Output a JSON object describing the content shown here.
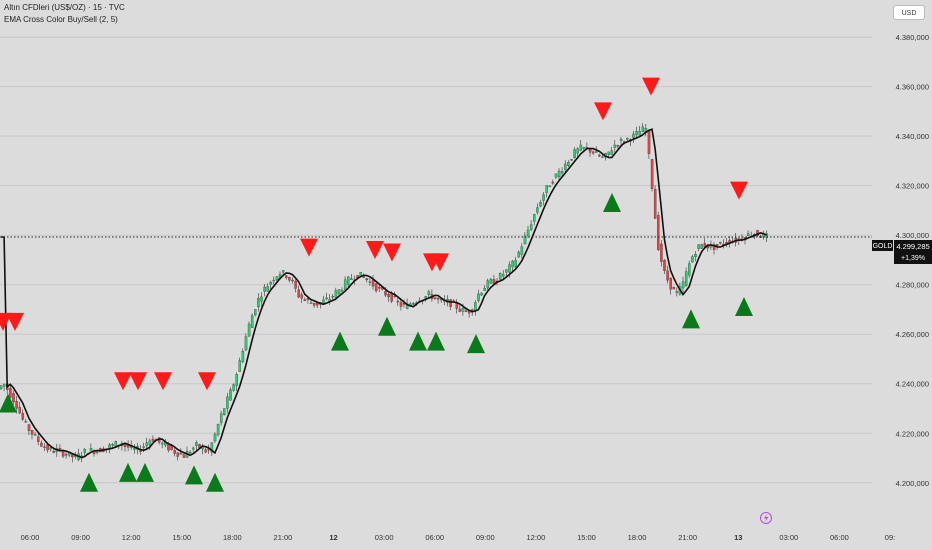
{
  "header": {
    "symbol_line": "Altın CFDleri (US$/OZ) · 15 · TVC",
    "indicator_line": "EMA Cross Color Buy/Sell (2, 5)"
  },
  "scale_button": {
    "label": "USD"
  },
  "price_badge": {
    "symbol": "GOLD",
    "price": "4.299,285",
    "change": "+1,39%"
  },
  "colors": {
    "background": "#dcdcdc",
    "bull": "#2ecc71",
    "bear": "#e04545",
    "buy": "#0a7a1a",
    "sell": "#ff1a1a",
    "ema": "#111111",
    "cross_up": "#2222cc",
    "cross_down": "#bb33cc"
  },
  "chart_data": {
    "type": "candlestick",
    "ylabel": "",
    "ylim": [
      4189000,
      4395000
    ],
    "y_ticks": [
      {
        "value": 4200000,
        "label": "4.200,000"
      },
      {
        "value": 4220000,
        "label": "4.220,000"
      },
      {
        "value": 4240000,
        "label": "4.240,000"
      },
      {
        "value": 4260000,
        "label": "4.260,000"
      },
      {
        "value": 4280000,
        "label": "4.280,000"
      },
      {
        "value": 4300000,
        "label": "4.300,000"
      },
      {
        "value": 4320000,
        "label": "4.320,000"
      },
      {
        "value": 4340000,
        "label": "4.340,000"
      },
      {
        "value": 4360000,
        "label": "4.360,000"
      },
      {
        "value": 4380000,
        "label": "4.380,000"
      }
    ],
    "x_labels": [
      "06:00",
      "09:00",
      "12:00",
      "15:00",
      "18:00",
      "21:00",
      "12",
      "03:00",
      "06:00",
      "09:00",
      "12:00",
      "15:00",
      "18:00",
      "21:00",
      "13",
      "03:00",
      "06:00",
      "09:"
    ],
    "bold_x_labels": [
      "12",
      "13"
    ],
    "last_price": 4299285,
    "price_path": [
      [
        0,
        4238000
      ],
      [
        6,
        4240000
      ],
      [
        12,
        4236000
      ],
      [
        18,
        4232000
      ],
      [
        24,
        4226000
      ],
      [
        30,
        4222000
      ],
      [
        36,
        4219000
      ],
      [
        42,
        4216000
      ],
      [
        48,
        4214000
      ],
      [
        54,
        4213000
      ],
      [
        60,
        4213000
      ],
      [
        66,
        4212000
      ],
      [
        72,
        4211000
      ],
      [
        78,
        4210000
      ],
      [
        84,
        4212000
      ],
      [
        90,
        4213000
      ],
      [
        96,
        4213000
      ],
      [
        102,
        4213500
      ],
      [
        108,
        4214000
      ],
      [
        114,
        4215000
      ],
      [
        120,
        4216000
      ],
      [
        126,
        4215000
      ],
      [
        132,
        4214000
      ],
      [
        138,
        4213000
      ],
      [
        144,
        4214000
      ],
      [
        150,
        4217000
      ],
      [
        156,
        4218000
      ],
      [
        162,
        4216000
      ],
      [
        168,
        4215000
      ],
      [
        174,
        4213000
      ],
      [
        180,
        4212000
      ],
      [
        186,
        4211000
      ],
      [
        192,
        4213000
      ],
      [
        198,
        4215000
      ],
      [
        204,
        4214000
      ],
      [
        210,
        4212000
      ],
      [
        216,
        4218000
      ],
      [
        222,
        4226000
      ],
      [
        228,
        4232000
      ],
      [
        234,
        4238000
      ],
      [
        240,
        4246000
      ],
      [
        246,
        4256000
      ],
      [
        252,
        4265000
      ],
      [
        258,
        4272000
      ],
      [
        264,
        4277000
      ],
      [
        270,
        4280000
      ],
      [
        276,
        4283000
      ],
      [
        282,
        4285000
      ],
      [
        288,
        4284000
      ],
      [
        294,
        4281000
      ],
      [
        300,
        4276000
      ],
      [
        306,
        4274000
      ],
      [
        312,
        4273000
      ],
      [
        318,
        4272000
      ],
      [
        324,
        4273000
      ],
      [
        330,
        4274000
      ],
      [
        336,
        4276000
      ],
      [
        342,
        4278000
      ],
      [
        348,
        4281000
      ],
      [
        354,
        4283000
      ],
      [
        360,
        4284000
      ],
      [
        366,
        4283000
      ],
      [
        372,
        4281000
      ],
      [
        378,
        4279000
      ],
      [
        384,
        4277000
      ],
      [
        390,
        4276000
      ],
      [
        396,
        4274000
      ],
      [
        402,
        4272000
      ],
      [
        408,
        4271000
      ],
      [
        414,
        4273000
      ],
      [
        420,
        4274000
      ],
      [
        426,
        4275000
      ],
      [
        432,
        4276000
      ],
      [
        438,
        4274000
      ],
      [
        444,
        4273000
      ],
      [
        450,
        4273000
      ],
      [
        456,
        4272000
      ],
      [
        462,
        4270000
      ],
      [
        468,
        4269000
      ],
      [
        474,
        4270000
      ],
      [
        480,
        4276000
      ],
      [
        486,
        4279000
      ],
      [
        492,
        4281000
      ],
      [
        498,
        4282000
      ],
      [
        504,
        4284000
      ],
      [
        510,
        4286000
      ],
      [
        516,
        4289000
      ],
      [
        522,
        4294000
      ],
      [
        528,
        4300000
      ],
      [
        534,
        4306000
      ],
      [
        540,
        4312000
      ],
      [
        546,
        4317000
      ],
      [
        552,
        4321000
      ],
      [
        558,
        4324000
      ],
      [
        564,
        4327000
      ],
      [
        570,
        4330000
      ],
      [
        576,
        4333000
      ],
      [
        582,
        4335000
      ],
      [
        588,
        4335000
      ],
      [
        594,
        4334000
      ],
      [
        600,
        4332000
      ],
      [
        606,
        4331000
      ],
      [
        612,
        4334000
      ],
      [
        618,
        4337000
      ],
      [
        624,
        4338000
      ],
      [
        630,
        4339000
      ],
      [
        636,
        4340000
      ],
      [
        642,
        4342000
      ],
      [
        648,
        4343000
      ],
      [
        654,
        4320000
      ],
      [
        660,
        4296000
      ],
      [
        666,
        4285000
      ],
      [
        672,
        4280000
      ],
      [
        678,
        4276000
      ],
      [
        684,
        4279000
      ],
      [
        690,
        4287000
      ],
      [
        696,
        4293000
      ],
      [
        702,
        4296000
      ],
      [
        708,
        4296000
      ],
      [
        714,
        4295000
      ],
      [
        720,
        4296000
      ],
      [
        726,
        4297000
      ],
      [
        732,
        4298000
      ],
      [
        738,
        4298000
      ],
      [
        744,
        4299000
      ],
      [
        750,
        4300000
      ],
      [
        756,
        4301000
      ],
      [
        762,
        4300000
      ],
      [
        768,
        4299285
      ]
    ],
    "sell_signals": [
      4265000,
      4265000,
      4241000,
      4241000,
      4241000,
      4241000,
      4295000,
      4294000,
      4293000,
      4289000,
      4289000,
      4350000,
      4360000,
      4318000
    ],
    "sell_x": [
      3,
      15,
      123,
      138,
      163,
      207,
      309,
      375,
      392,
      432,
      440,
      603,
      651,
      739
    ],
    "buy_signals": [
      4232000,
      4200000,
      4204000,
      4204000,
      4203000,
      4200000,
      4257000,
      4263000,
      4257000,
      4257000,
      4256000,
      4313000,
      4266000,
      4271000
    ],
    "buy_x": [
      8,
      89,
      128,
      145,
      194,
      215,
      340,
      387,
      418,
      436,
      476,
      612,
      691,
      744
    ]
  }
}
